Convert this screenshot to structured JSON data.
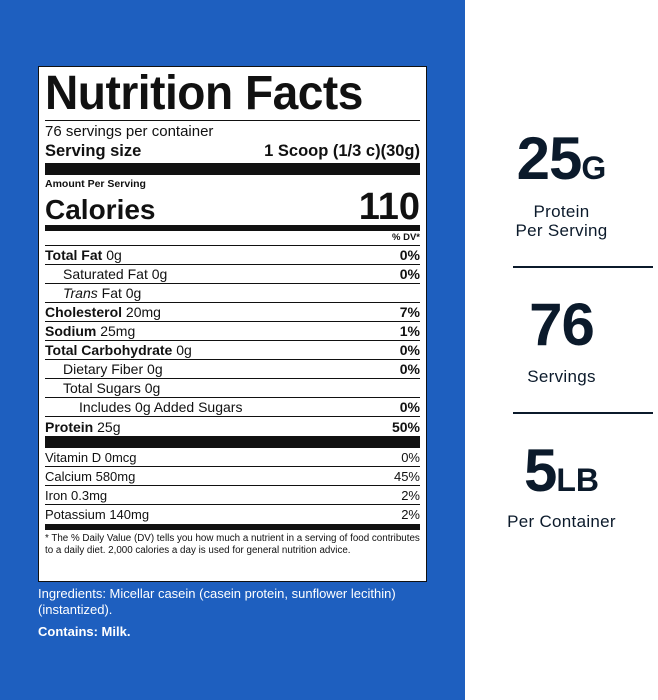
{
  "label": {
    "title": "Nutrition Facts",
    "servings_per_container": "76 servings per container",
    "serving_size_label": "Serving size",
    "serving_size_value": "1 Scoop (1/3 c)(30g)",
    "amount_per_serving": "Amount Per Serving",
    "calories_label": "Calories",
    "calories_value": "110",
    "dv_header": "% DV*",
    "nutrients": [
      {
        "name": "Total Fat",
        "amount": "0g",
        "dv": "0%"
      },
      {
        "name": "Saturated Fat",
        "amount": "0g",
        "dv": "0%"
      },
      {
        "name": "Trans",
        "name_rest": "Fat",
        "amount": "0g",
        "dv": ""
      },
      {
        "name": "Cholesterol",
        "amount": "20mg",
        "dv": "7%"
      },
      {
        "name": "Sodium",
        "amount": "25mg",
        "dv": "1%"
      },
      {
        "name": "Total Carbohydrate",
        "amount": "0g",
        "dv": "0%"
      },
      {
        "name": "Dietary Fiber",
        "amount": "0g",
        "dv": "0%"
      },
      {
        "name": "Total Sugars",
        "amount": "0g",
        "dv": ""
      },
      {
        "name": "Includes 0g Added Sugars",
        "amount": "",
        "dv": "0%"
      },
      {
        "name": "Protein",
        "amount": "25g",
        "dv": "50%"
      }
    ],
    "vitamins": [
      {
        "name": "Vitamin D",
        "amount": "0mcg",
        "dv": "0%"
      },
      {
        "name": "Calcium",
        "amount": "580mg",
        "dv": "45%"
      },
      {
        "name": "Iron",
        "amount": "0.3mg",
        "dv": "2%"
      },
      {
        "name": "Potassium",
        "amount": "140mg",
        "dv": "2%"
      }
    ],
    "footnote": "* The % Daily Value (DV) tells you how much a nutrient in a serving of food contributes to a daily diet. 2,000 calories a day is used for general nutrition advice."
  },
  "ingredients": "Ingredients: Micellar casein (casein protein, sunflower lecithin) (instantized).",
  "contains": "Contains: Milk.",
  "stats": [
    {
      "number": "25",
      "unit": "G",
      "caption_line1": "Protein",
      "caption_line2": "Per Serving"
    },
    {
      "number": "76",
      "unit": "",
      "caption_line1": "Servings",
      "caption_line2": ""
    },
    {
      "number": "5",
      "unit": "LB",
      "caption_line1": "Per Container",
      "caption_line2": ""
    }
  ],
  "colors": {
    "panel_blue": "#1e5fbf",
    "stat_text": "#0b1a2b"
  }
}
